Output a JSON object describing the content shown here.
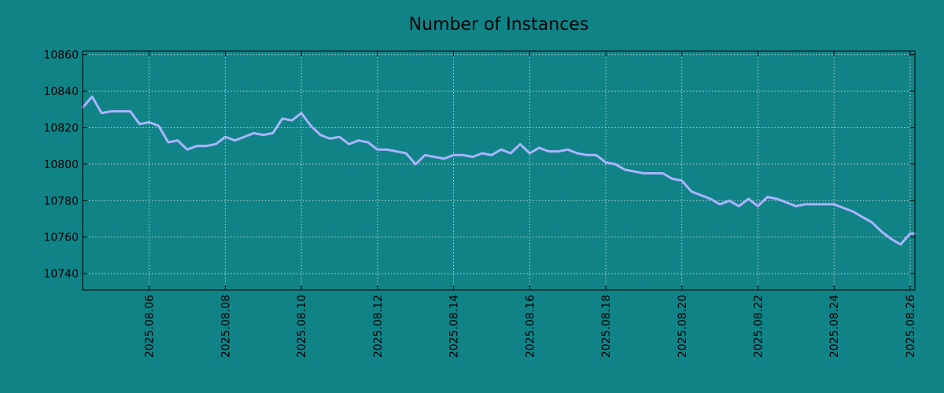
{
  "chart_data": {
    "type": "line",
    "title": "Number of Instances",
    "xlabel": "",
    "ylabel": "",
    "xlim": [
      "2025-08-04T06:00",
      "2025-08-26T03:00"
    ],
    "ylim": [
      10731,
      10862
    ],
    "y_ticks": [
      10740,
      10760,
      10780,
      10800,
      10820,
      10840,
      10860
    ],
    "x_ticks": [
      "2025.08.06",
      "2025.08.08",
      "2025.08.10",
      "2025.08.12",
      "2025.08.14",
      "2025.08.16",
      "2025.08.18",
      "2025.08.20",
      "2025.08.22",
      "2025.08.24",
      "2025.08.26"
    ],
    "x_tick_dates": [
      "2025-08-06",
      "2025-08-08",
      "2025-08-10",
      "2025-08-12",
      "2025-08-14",
      "2025-08-16",
      "2025-08-18",
      "2025-08-20",
      "2025-08-22",
      "2025-08-24",
      "2025-08-26"
    ],
    "grid": true,
    "colors": {
      "background": "#108387",
      "line": "#aab4ff",
      "grid": "#d9d9d9"
    },
    "series": [
      {
        "color": "#aab4ff",
        "x": [
          "2025-08-04T06:00",
          "2025-08-04T12:00",
          "2025-08-04T18:00",
          "2025-08-05T00:00",
          "2025-08-05T06:00",
          "2025-08-05T12:00",
          "2025-08-05T18:00",
          "2025-08-06T00:00",
          "2025-08-06T06:00",
          "2025-08-06T12:00",
          "2025-08-06T18:00",
          "2025-08-07T00:00",
          "2025-08-07T06:00",
          "2025-08-07T12:00",
          "2025-08-07T18:00",
          "2025-08-08T00:00",
          "2025-08-08T06:00",
          "2025-08-08T12:00",
          "2025-08-08T18:00",
          "2025-08-09T00:00",
          "2025-08-09T06:00",
          "2025-08-09T12:00",
          "2025-08-09T18:00",
          "2025-08-10T00:00",
          "2025-08-10T06:00",
          "2025-08-10T12:00",
          "2025-08-10T18:00",
          "2025-08-11T00:00",
          "2025-08-11T06:00",
          "2025-08-11T12:00",
          "2025-08-11T18:00",
          "2025-08-12T00:00",
          "2025-08-12T06:00",
          "2025-08-12T12:00",
          "2025-08-12T18:00",
          "2025-08-13T00:00",
          "2025-08-13T06:00",
          "2025-08-13T12:00",
          "2025-08-13T18:00",
          "2025-08-14T00:00",
          "2025-08-14T06:00",
          "2025-08-14T12:00",
          "2025-08-14T18:00",
          "2025-08-15T00:00",
          "2025-08-15T06:00",
          "2025-08-15T12:00",
          "2025-08-15T18:00",
          "2025-08-16T00:00",
          "2025-08-16T06:00",
          "2025-08-16T12:00",
          "2025-08-16T18:00",
          "2025-08-17T00:00",
          "2025-08-17T06:00",
          "2025-08-17T12:00",
          "2025-08-17T18:00",
          "2025-08-18T00:00",
          "2025-08-18T06:00",
          "2025-08-18T12:00",
          "2025-08-18T18:00",
          "2025-08-19T00:00",
          "2025-08-19T06:00",
          "2025-08-19T12:00",
          "2025-08-19T18:00",
          "2025-08-20T00:00",
          "2025-08-20T06:00",
          "2025-08-20T12:00",
          "2025-08-20T18:00",
          "2025-08-21T00:00",
          "2025-08-21T06:00",
          "2025-08-21T12:00",
          "2025-08-21T18:00",
          "2025-08-22T00:00",
          "2025-08-22T06:00",
          "2025-08-22T12:00",
          "2025-08-22T18:00",
          "2025-08-23T00:00",
          "2025-08-23T06:00",
          "2025-08-23T12:00",
          "2025-08-23T18:00",
          "2025-08-24T00:00",
          "2025-08-24T06:00",
          "2025-08-24T12:00",
          "2025-08-24T18:00",
          "2025-08-25T00:00",
          "2025-08-25T06:00",
          "2025-08-25T12:00",
          "2025-08-25T18:00",
          "2025-08-26T00:00",
          "2025-08-26T03:00"
        ],
        "values": [
          10831,
          10837,
          10828,
          10829,
          10829,
          10829,
          10822,
          10823,
          10821,
          10812,
          10813,
          10808,
          10810,
          10810,
          10811,
          10815,
          10813,
          10815,
          10817,
          10816,
          10817,
          10825,
          10824,
          10828,
          10821,
          10816,
          10814,
          10815,
          10811,
          10813,
          10812,
          10808,
          10808,
          10807,
          10806,
          10800,
          10805,
          10804,
          10803,
          10805,
          10805,
          10804,
          10806,
          10805,
          10808,
          10806,
          10811,
          10806,
          10809,
          10807,
          10807,
          10808,
          10806,
          10805,
          10805,
          10801,
          10800,
          10797,
          10796,
          10795,
          10795,
          10795,
          10792,
          10791,
          10785,
          10783,
          10781,
          10778,
          10780,
          10777,
          10781,
          10777,
          10782,
          10781,
          10779,
          10777,
          10778,
          10778,
          10778,
          10778,
          10776,
          10774,
          10771,
          10768,
          10763,
          10759,
          10756,
          10762,
          10762
        ]
      }
    ]
  }
}
